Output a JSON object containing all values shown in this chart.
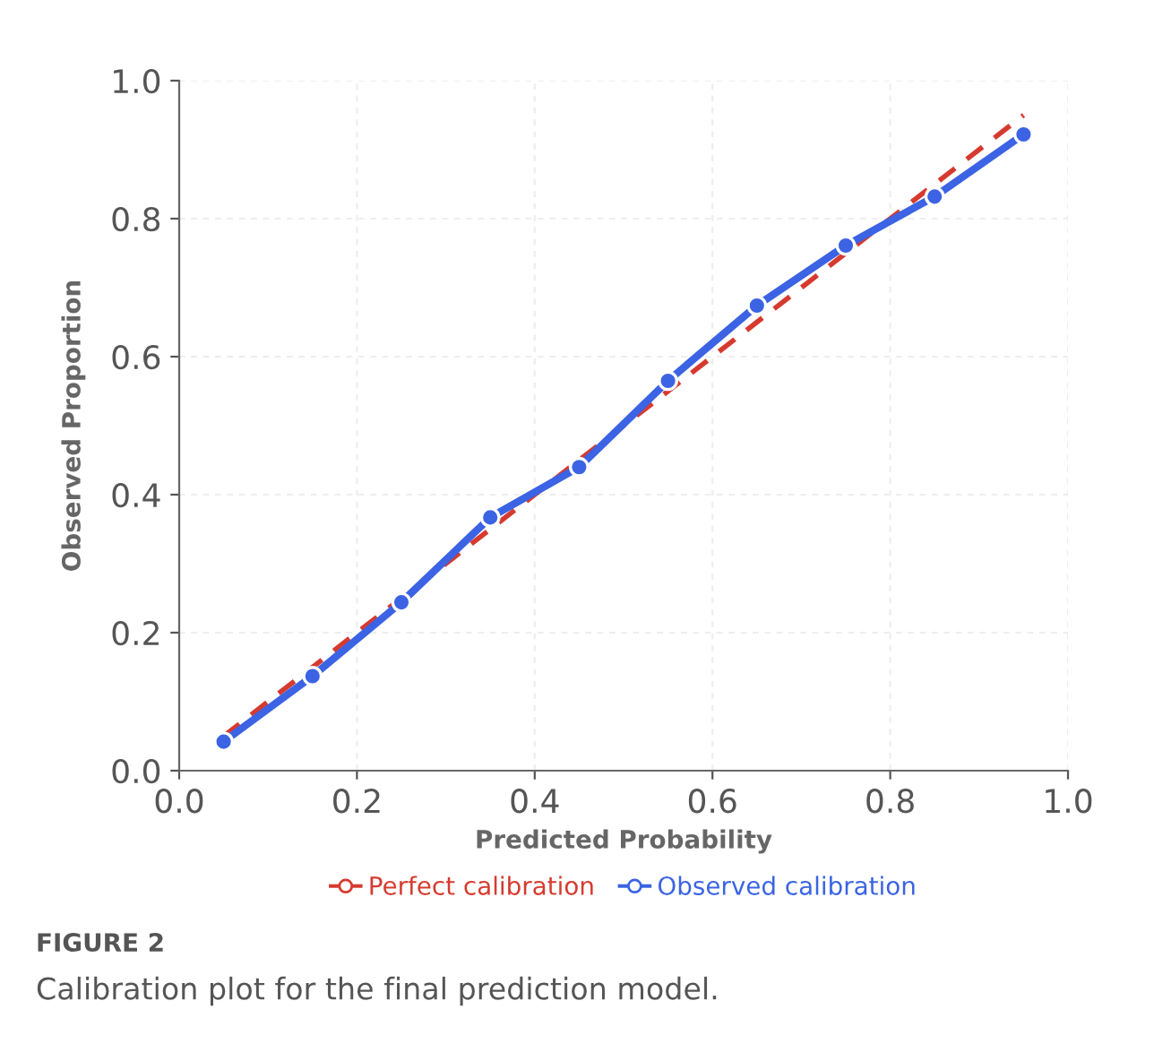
{
  "chart_data": {
    "type": "line",
    "xlabel": "Predicted Probability",
    "ylabel": "Observed Proportion",
    "x": [
      0.05,
      0.15,
      0.25,
      0.35,
      0.45,
      0.55,
      0.65,
      0.75,
      0.85,
      0.95
    ],
    "series": [
      {
        "name": "Perfect calibration",
        "color": "#d63a2f",
        "x": [
          0.05,
          0.95
        ],
        "values": [
          0.05,
          0.95
        ],
        "line_style": "dashed",
        "marker": "none"
      },
      {
        "name": "Observed calibration",
        "color": "#3b63e3",
        "values": [
          0.042,
          0.137,
          0.244,
          0.367,
          0.44,
          0.565,
          0.674,
          0.761,
          0.832,
          0.922
        ],
        "line_style": "solid",
        "marker": "circle"
      }
    ],
    "xlim": [
      0,
      1
    ],
    "ylim": [
      0,
      1
    ],
    "xticks": [
      {
        "value": 0,
        "label": "0.0"
      },
      0.2,
      0.4,
      0.6,
      0.8,
      {
        "value": 1,
        "label": "1.0"
      }
    ],
    "yticks": [
      {
        "value": 0,
        "label": "0.0"
      },
      0.2,
      0.4,
      0.6,
      0.8,
      {
        "value": 1,
        "label": "1.0"
      }
    ],
    "grid": true,
    "legend": "bottom",
    "annotations": [
      "FIGURE 2",
      "Calibration plot for the final prediction model."
    ]
  }
}
